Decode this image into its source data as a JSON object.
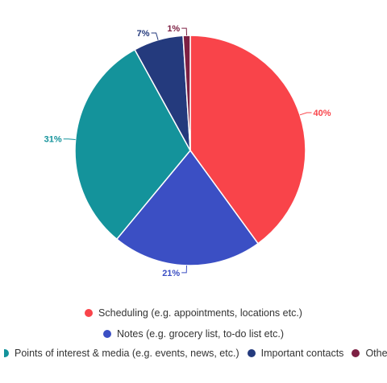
{
  "chart_data": {
    "type": "pie",
    "series": [
      {
        "name": "Scheduling (e.g. appointments, locations etc.)",
        "value": 40,
        "label": "40%",
        "color": "#f9444a"
      },
      {
        "name": "Notes (e.g. grocery list, to-do list etc.)",
        "value": 21,
        "label": "21%",
        "color": "#3b4fc4"
      },
      {
        "name": "Points of interest & media (e.g. events, news, etc.)",
        "value": 31,
        "label": "31%",
        "color": "#14939b"
      },
      {
        "name": "Important contacts",
        "value": 7,
        "label": "7%",
        "color": "#243a7d"
      },
      {
        "name": "Other",
        "value": 1,
        "label": "1%",
        "color": "#7d2043"
      }
    ],
    "legend_position": "bottom"
  }
}
